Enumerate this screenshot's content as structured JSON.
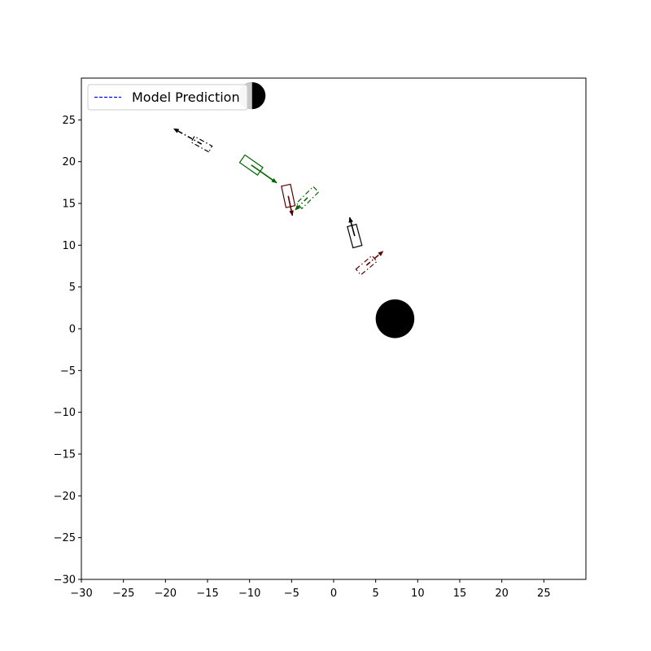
{
  "chart_data": {
    "type": "scatter",
    "title": "",
    "xlabel": "",
    "ylabel": "",
    "xlim": [
      -30,
      30
    ],
    "ylim": [
      -30,
      30
    ],
    "xticks": [
      -30,
      -25,
      -20,
      -15,
      -10,
      -5,
      0,
      5,
      10,
      15,
      20,
      25
    ],
    "yticks": [
      -30,
      -25,
      -20,
      -15,
      -10,
      -5,
      0,
      5,
      10,
      15,
      20,
      25
    ],
    "xtick_labels": [
      "−30",
      "−25",
      "−20",
      "−15",
      "−10",
      "−5",
      "0",
      "5",
      "10",
      "15",
      "20",
      "25"
    ],
    "ytick_labels": [
      "−30",
      "−25",
      "−20",
      "−15",
      "−10",
      "−5",
      "0",
      "5",
      "10",
      "15",
      "20",
      "25"
    ],
    "grid": false,
    "legend": {
      "position": "upper-left",
      "entries": [
        {
          "label": "Model Prediction",
          "color": "#0000ff",
          "linestyle": "dashed"
        }
      ]
    },
    "obstacles": [
      {
        "x": 7.3,
        "y": 1.2,
        "radius": 2.3,
        "color": "#000000"
      },
      {
        "x": -9.7,
        "y": 27.9,
        "radius": 1.6,
        "color": "#000000",
        "left_half_color": "#c8c8c8"
      }
    ],
    "vehicles": [
      {
        "x": -15.7,
        "y": 22.1,
        "heading_deg": 151,
        "width": 0.8,
        "length": 2.4,
        "color": "#000000",
        "linestyle": "dashdot",
        "traj_length": 3.8
      },
      {
        "x": -9.8,
        "y": 19.6,
        "heading_deg": -35,
        "width": 1.1,
        "length": 2.6,
        "color": "#006400",
        "linestyle": "solid",
        "traj_length": 3.7
      },
      {
        "x": -5.4,
        "y": 15.9,
        "heading_deg": -78,
        "width": 1.1,
        "length": 2.6,
        "color": "#5a0000",
        "linestyle": "solid",
        "traj_length": 2.4
      },
      {
        "x": -3.1,
        "y": 15.7,
        "heading_deg": 225,
        "width": 0.9,
        "length": 2.8,
        "color": "#006400",
        "linestyle": "dashdot",
        "traj_length": 2.1
      },
      {
        "x": 2.5,
        "y": 11.1,
        "heading_deg": 105,
        "width": 1.1,
        "length": 2.6,
        "color": "#000000",
        "linestyle": "solid",
        "traj_length": 2.3
      },
      {
        "x": 3.9,
        "y": 7.6,
        "heading_deg": 40,
        "width": 0.9,
        "length": 2.5,
        "color": "#5a0000",
        "linestyle": "dashdot",
        "traj_length": 2.6
      }
    ]
  }
}
